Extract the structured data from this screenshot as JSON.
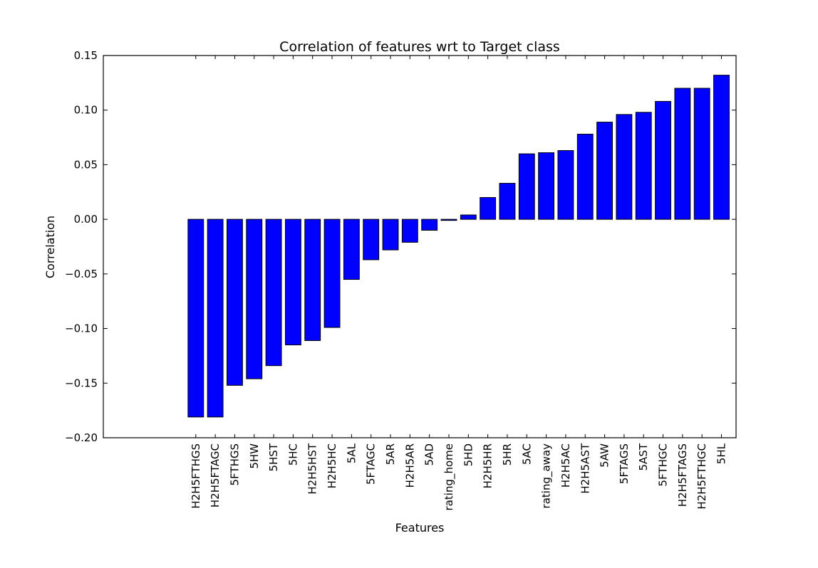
{
  "chart_data": {
    "type": "bar",
    "title": "Correlation of features wrt to Target class",
    "xlabel": "Features",
    "ylabel": "Correlation",
    "ylim": [
      -0.2,
      0.15
    ],
    "yticks": [
      "0.15",
      "0.10",
      "0.05",
      "0.00",
      "−0.05",
      "−0.10",
      "−0.15",
      "−0.20"
    ],
    "ytick_values": [
      0.15,
      0.1,
      0.05,
      0.0,
      -0.05,
      -0.1,
      -0.15,
      -0.2
    ],
    "grid": false,
    "bar_color": "#0000ff",
    "categories": [
      "H2H5FTHGS",
      "H2H5FTAGC",
      "5FTHGS",
      "5HW",
      "5HST",
      "5HC",
      "H2H5HST",
      "H2H5HC",
      "5AL",
      "5FTAGC",
      "5AR",
      "H2H5AR",
      "5AD",
      "rating_home",
      "5HD",
      "H2H5HR",
      "5HR",
      "5AC",
      "rating_away",
      "H2H5AC",
      "H2H5AST",
      "5AW",
      "5FTAGS",
      "5AST",
      "5FTHGC",
      "H2H5FTAGS",
      "H2H5FTHGC",
      "5HL"
    ],
    "values": [
      -0.181,
      -0.181,
      -0.152,
      -0.146,
      -0.134,
      -0.115,
      -0.111,
      -0.099,
      -0.055,
      -0.037,
      -0.028,
      -0.021,
      -0.01,
      -0.001,
      0.004,
      0.02,
      0.033,
      0.06,
      0.061,
      0.063,
      0.078,
      0.089,
      0.096,
      0.098,
      0.108,
      0.12,
      0.12,
      0.132
    ]
  }
}
